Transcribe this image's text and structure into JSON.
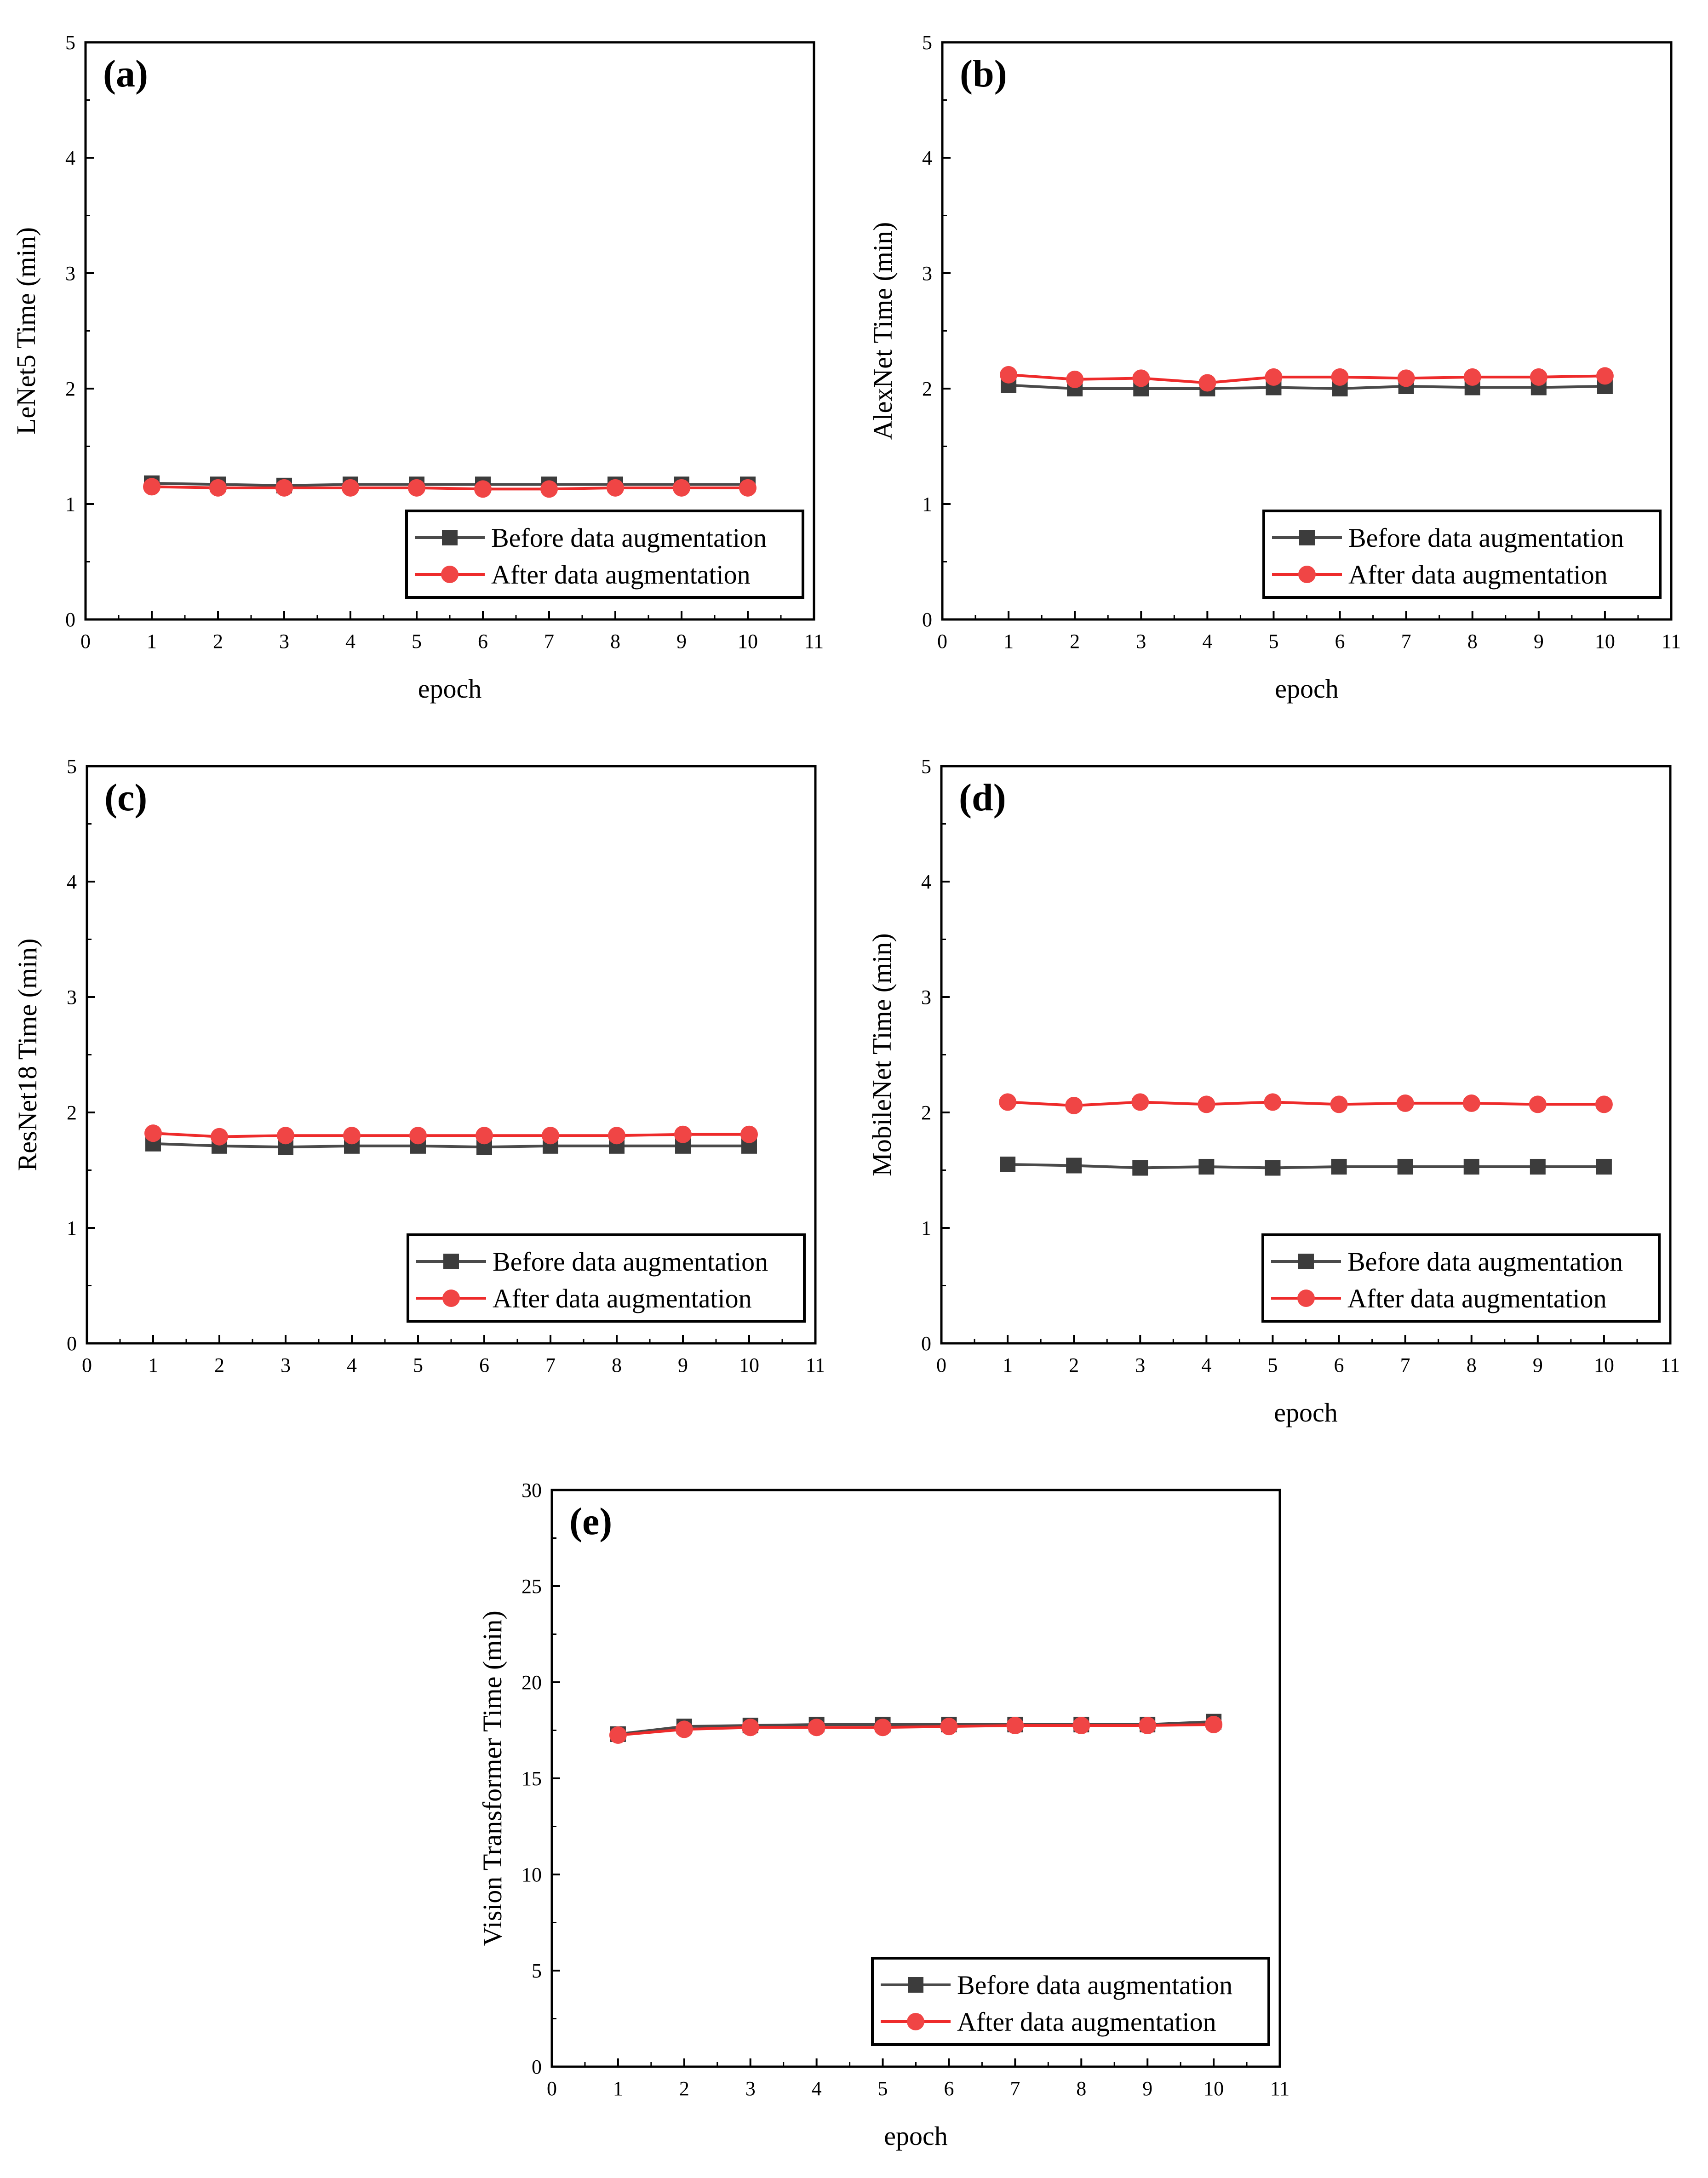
{
  "figure": {
    "legend": {
      "before_label": "Before data augmentation",
      "after_label": "After data augmentation"
    },
    "colors": {
      "before": "#4a4a4a",
      "before_marker": "#3c3c3c",
      "after": "#ee2b2b",
      "after_marker": "#f04545",
      "axis": "#000000"
    }
  },
  "chart_data": [
    {
      "id": "a",
      "type": "line",
      "panel_label": "(a)",
      "xlabel": "epoch",
      "ylabel": "LeNet5 Time (min)",
      "xlim": [
        0,
        11
      ],
      "ylim": [
        0,
        5
      ],
      "xticks": [
        0,
        1,
        2,
        3,
        4,
        5,
        6,
        7,
        8,
        9,
        10,
        11
      ],
      "yticks": [
        0,
        1,
        2,
        3,
        4,
        5
      ],
      "legend_position": "bottom-right",
      "x": [
        1,
        2,
        3,
        4,
        5,
        6,
        7,
        8,
        9,
        10
      ],
      "series": [
        {
          "name": "Before data augmentation",
          "values": [
            1.18,
            1.17,
            1.16,
            1.17,
            1.17,
            1.17,
            1.17,
            1.17,
            1.17,
            1.17
          ]
        },
        {
          "name": "After data augmentation",
          "values": [
            1.15,
            1.14,
            1.14,
            1.14,
            1.14,
            1.13,
            1.13,
            1.14,
            1.14,
            1.14
          ]
        }
      ]
    },
    {
      "id": "b",
      "type": "line",
      "panel_label": "(b)",
      "xlabel": "epoch",
      "ylabel": "AlexNet Time (min)",
      "xlim": [
        0,
        11
      ],
      "ylim": [
        0,
        5
      ],
      "xticks": [
        0,
        1,
        2,
        3,
        4,
        5,
        6,
        7,
        8,
        9,
        10,
        11
      ],
      "yticks": [
        0,
        1,
        2,
        3,
        4,
        5
      ],
      "legend_position": "bottom-right",
      "x": [
        1,
        2,
        3,
        4,
        5,
        6,
        7,
        8,
        9,
        10
      ],
      "series": [
        {
          "name": "Before data augmentation",
          "values": [
            2.03,
            2.0,
            2.0,
            2.0,
            2.01,
            2.0,
            2.02,
            2.01,
            2.01,
            2.02
          ]
        },
        {
          "name": "After data augmentation",
          "values": [
            2.12,
            2.08,
            2.09,
            2.05,
            2.1,
            2.1,
            2.09,
            2.1,
            2.1,
            2.11
          ]
        }
      ]
    },
    {
      "id": "c",
      "type": "line",
      "panel_label": "(c)",
      "xlabel": "",
      "ylabel": "ResNet18 Time (min)",
      "xlim": [
        0,
        11
      ],
      "ylim": [
        0,
        5
      ],
      "xticks": [
        0,
        1,
        2,
        3,
        4,
        5,
        6,
        7,
        8,
        9,
        10,
        11
      ],
      "yticks": [
        0,
        1,
        2,
        3,
        4,
        5
      ],
      "legend_position": "bottom-right",
      "x": [
        1,
        2,
        3,
        4,
        5,
        6,
        7,
        8,
        9,
        10
      ],
      "series": [
        {
          "name": "Before data augmentation",
          "values": [
            1.73,
            1.71,
            1.7,
            1.71,
            1.71,
            1.7,
            1.71,
            1.71,
            1.71,
            1.71
          ]
        },
        {
          "name": "After data augmentation",
          "values": [
            1.82,
            1.79,
            1.8,
            1.8,
            1.8,
            1.8,
            1.8,
            1.8,
            1.81,
            1.81
          ]
        }
      ]
    },
    {
      "id": "d",
      "type": "line",
      "panel_label": "(d)",
      "xlabel": "epoch",
      "ylabel": "MobileNet Time (min)",
      "xlim": [
        0,
        11
      ],
      "ylim": [
        0,
        5
      ],
      "xticks": [
        0,
        1,
        2,
        3,
        4,
        5,
        6,
        7,
        8,
        9,
        10,
        11
      ],
      "yticks": [
        0,
        1,
        2,
        3,
        4,
        5
      ],
      "legend_position": "bottom-right",
      "x": [
        1,
        2,
        3,
        4,
        5,
        6,
        7,
        8,
        9,
        10
      ],
      "series": [
        {
          "name": "Before data augmentation",
          "values": [
            1.55,
            1.54,
            1.52,
            1.53,
            1.52,
            1.53,
            1.53,
            1.53,
            1.53,
            1.53
          ]
        },
        {
          "name": "After data augmentation",
          "values": [
            2.09,
            2.06,
            2.09,
            2.07,
            2.09,
            2.07,
            2.08,
            2.08,
            2.07,
            2.07
          ]
        }
      ]
    },
    {
      "id": "e",
      "type": "line",
      "panel_label": "(e)",
      "xlabel": "epoch",
      "ylabel": "Vision Transformer Time (min)",
      "xlim": [
        0,
        11
      ],
      "ylim": [
        0,
        30
      ],
      "xticks": [
        0,
        1,
        2,
        3,
        4,
        5,
        6,
        7,
        8,
        9,
        10,
        11
      ],
      "yticks": [
        0,
        5,
        10,
        15,
        20,
        25,
        30
      ],
      "legend_position": "bottom-right",
      "x": [
        1,
        2,
        3,
        4,
        5,
        6,
        7,
        8,
        9,
        10
      ],
      "series": [
        {
          "name": "Before data augmentation",
          "values": [
            17.3,
            17.7,
            17.75,
            17.8,
            17.8,
            17.8,
            17.8,
            17.8,
            17.8,
            17.95
          ]
        },
        {
          "name": "After data augmentation",
          "values": [
            17.25,
            17.55,
            17.65,
            17.65,
            17.65,
            17.7,
            17.75,
            17.75,
            17.75,
            17.8
          ]
        }
      ]
    }
  ]
}
